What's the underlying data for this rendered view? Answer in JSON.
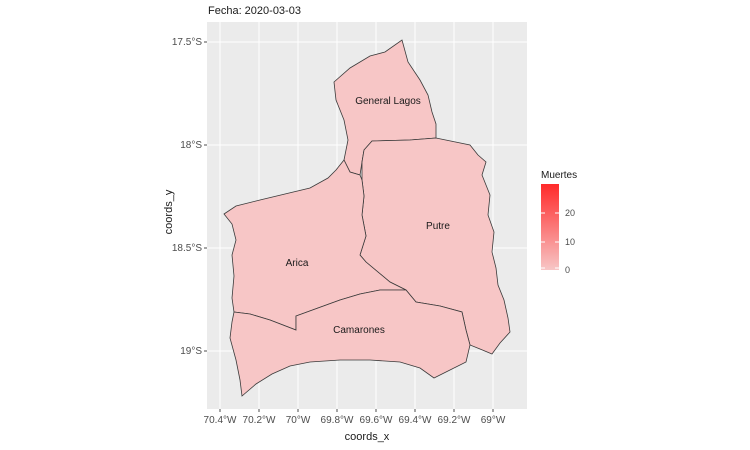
{
  "title": "Fecha: 2020-03-03",
  "x_axis": {
    "title": "coords_x",
    "ticks": [
      "70.4°W",
      "70.2°W",
      "70°W",
      "69.8°W",
      "69.6°W",
      "69.4°W",
      "69.2°W",
      "69°W"
    ]
  },
  "y_axis": {
    "title": "coords_y",
    "ticks": [
      "17.5°S",
      "18°S",
      "18.5°S",
      "19°S"
    ]
  },
  "legend": {
    "title": "Muertes",
    "ticks": [
      "20",
      "10",
      "0"
    ],
    "color_low": "#f7c6c6",
    "color_high": "#ff2a2a"
  },
  "regions": [
    {
      "name": "General Lagos",
      "value": 0,
      "color": "#f7c6c6"
    },
    {
      "name": "Putre",
      "value": 0,
      "color": "#f7c6c6"
    },
    {
      "name": "Arica",
      "value": 0,
      "color": "#f7c6c6"
    },
    {
      "name": "Camarones",
      "value": 0,
      "color": "#f7c6c6"
    }
  ],
  "colors": {
    "panel_background": "#ebebeb",
    "grid": "#ffffff",
    "border": "#3a3a3a"
  }
}
